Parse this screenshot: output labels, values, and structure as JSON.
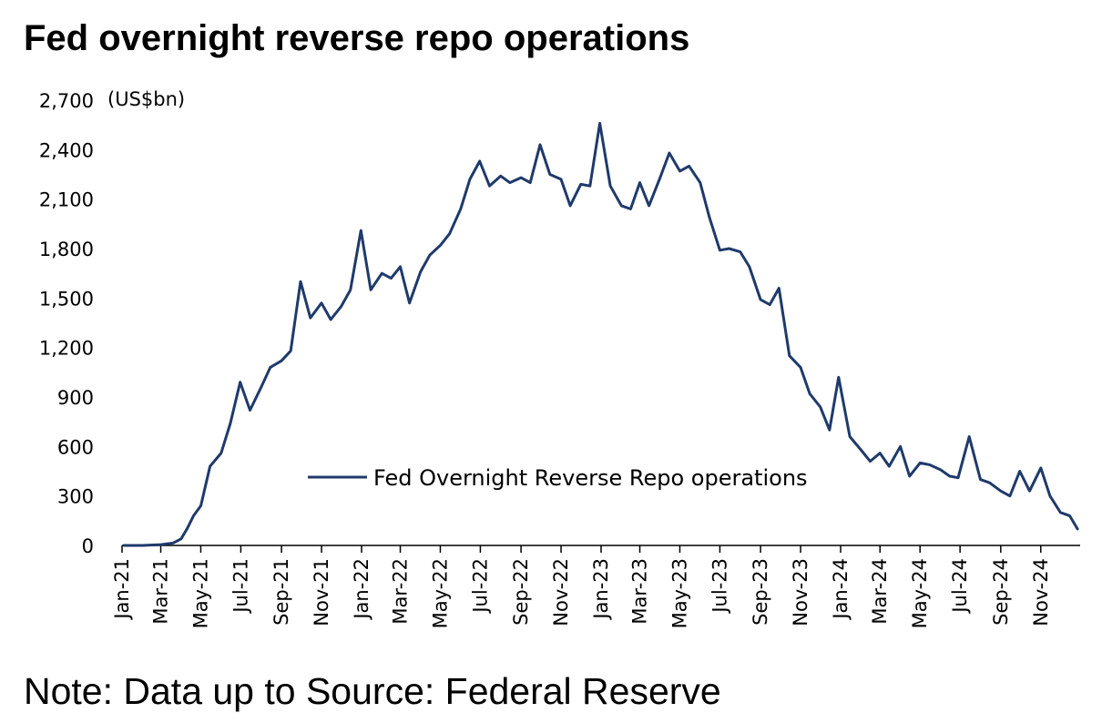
{
  "title": "Fed overnight reverse repo operations",
  "note": "Note: Data up to Source: Federal Reserve",
  "colors": {
    "series": "#1f3a6b",
    "axis": "#000000",
    "text": "#000000"
  },
  "chart_data": {
    "type": "line",
    "unit_label": "(US$bn)",
    "ylim": [
      0,
      2700
    ],
    "yticks": [
      0,
      300,
      600,
      900,
      1200,
      1500,
      1800,
      2100,
      2400,
      2700
    ],
    "ytick_labels": [
      "0",
      "300",
      "600",
      "900",
      "1,200",
      "1,500",
      "1,800",
      "2,100",
      "2,400",
      "2,700"
    ],
    "xlim": [
      "2021-01-01",
      "2024-12-31"
    ],
    "xticks": [
      "2021-01-01",
      "2021-03-01",
      "2021-05-01",
      "2021-07-01",
      "2021-09-01",
      "2021-11-01",
      "2022-01-01",
      "2022-03-01",
      "2022-05-01",
      "2022-07-01",
      "2022-09-01",
      "2022-11-01",
      "2023-01-01",
      "2023-03-01",
      "2023-05-01",
      "2023-07-01",
      "2023-09-01",
      "2023-11-01",
      "2024-01-01",
      "2024-03-01",
      "2024-05-01",
      "2024-07-01",
      "2024-09-01",
      "2024-11-01"
    ],
    "xtick_labels": [
      "Jan-21",
      "Mar-21",
      "May-21",
      "Jul-21",
      "Sep-21",
      "Nov-21",
      "Jan-22",
      "Mar-22",
      "May-22",
      "Jul-22",
      "Sep-22",
      "Nov-22",
      "Jan-23",
      "Mar-23",
      "May-23",
      "Jul-23",
      "Sep-23",
      "Nov-23",
      "Jan-24",
      "Mar-24",
      "May-24",
      "Jul-24",
      "Sep-24",
      "Nov-24"
    ],
    "grid": false,
    "legend_position": "center-right",
    "series": [
      {
        "name": "Fed Overnight Reverse Repo operations",
        "x": [
          "2021-01-04",
          "2021-02-01",
          "2021-03-01",
          "2021-03-20",
          "2021-04-01",
          "2021-04-10",
          "2021-04-20",
          "2021-05-01",
          "2021-05-15",
          "2021-06-01",
          "2021-06-15",
          "2021-06-30",
          "2021-07-15",
          "2021-08-01",
          "2021-08-15",
          "2021-09-01",
          "2021-09-15",
          "2021-09-30",
          "2021-10-15",
          "2021-11-01",
          "2021-11-15",
          "2021-12-01",
          "2021-12-15",
          "2021-12-31",
          "2022-01-15",
          "2022-02-01",
          "2022-02-15",
          "2022-03-01",
          "2022-03-15",
          "2022-04-01",
          "2022-04-15",
          "2022-05-01",
          "2022-05-15",
          "2022-06-01",
          "2022-06-15",
          "2022-06-30",
          "2022-07-15",
          "2022-08-01",
          "2022-08-15",
          "2022-09-01",
          "2022-09-15",
          "2022-09-30",
          "2022-10-15",
          "2022-11-01",
          "2022-11-15",
          "2022-12-01",
          "2022-12-15",
          "2022-12-30",
          "2023-01-15",
          "2023-02-01",
          "2023-02-15",
          "2023-03-01",
          "2023-03-15",
          "2023-04-01",
          "2023-04-15",
          "2023-05-01",
          "2023-05-15",
          "2023-06-01",
          "2023-06-15",
          "2023-07-01",
          "2023-07-15",
          "2023-08-01",
          "2023-08-15",
          "2023-09-01",
          "2023-09-15",
          "2023-09-29",
          "2023-10-15",
          "2023-11-01",
          "2023-11-15",
          "2023-12-01",
          "2023-12-15",
          "2023-12-29",
          "2024-01-15",
          "2024-02-01",
          "2024-02-15",
          "2024-03-01",
          "2024-03-15",
          "2024-04-01",
          "2024-04-15",
          "2024-05-01",
          "2024-05-15",
          "2024-06-01",
          "2024-06-15",
          "2024-06-28",
          "2024-07-15",
          "2024-08-01",
          "2024-08-15",
          "2024-09-01",
          "2024-09-15",
          "2024-09-30",
          "2024-10-15",
          "2024-11-01",
          "2024-11-15",
          "2024-12-01",
          "2024-12-15",
          "2024-12-27"
        ],
        "y": [
          0,
          0,
          5,
          15,
          40,
          100,
          180,
          240,
          480,
          560,
          740,
          990,
          820,
          960,
          1080,
          1120,
          1180,
          1600,
          1380,
          1470,
          1370,
          1450,
          1550,
          1910,
          1550,
          1650,
          1620,
          1690,
          1470,
          1660,
          1760,
          1820,
          1890,
          2040,
          2220,
          2330,
          2180,
          2240,
          2200,
          2230,
          2200,
          2430,
          2250,
          2220,
          2060,
          2190,
          2180,
          2560,
          2180,
          2060,
          2040,
          2200,
          2060,
          2230,
          2380,
          2270,
          2300,
          2200,
          1990,
          1790,
          1800,
          1780,
          1690,
          1490,
          1460,
          1560,
          1150,
          1080,
          920,
          840,
          700,
          1020,
          660,
          580,
          510,
          560,
          480,
          600,
          420,
          500,
          490,
          460,
          420,
          410,
          660,
          400,
          380,
          330,
          300,
          450,
          330,
          470,
          300,
          200,
          180,
          100
        ]
      }
    ]
  }
}
